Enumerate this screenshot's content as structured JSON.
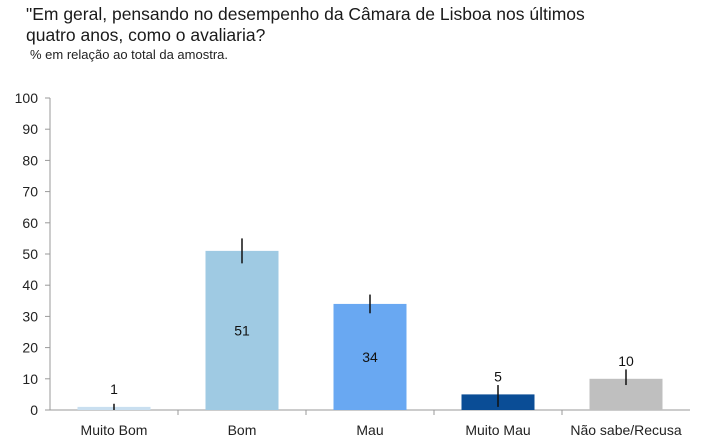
{
  "title": "\"Em geral, pensando no desempenho da Câmara de Lisboa nos últimos quatro anos, como o avaliaria?",
  "subtitle": "% em relação ao total da amostra.",
  "chart_data": {
    "type": "bar",
    "categories": [
      "Muito Bom",
      "Bom",
      "Mau",
      "Muito Mau",
      "Não sabe/Recusa"
    ],
    "values": [
      1,
      51,
      34,
      5,
      10
    ],
    "data_labels": [
      "1",
      "51",
      "34",
      "5",
      "10"
    ],
    "error_bars": [
      [
        0,
        2
      ],
      [
        47,
        55
      ],
      [
        31,
        37
      ],
      [
        1,
        8
      ],
      [
        8,
        13
      ]
    ],
    "colors": [
      "#c9dff0",
      "#9fcae3",
      "#69a8f2",
      "#0a4d96",
      "#bfbfbf"
    ],
    "ylim": [
      0,
      100
    ],
    "yticks": [
      0,
      10,
      20,
      30,
      40,
      50,
      60,
      70,
      80,
      90,
      100
    ],
    "grid": false,
    "legend": "none"
  }
}
